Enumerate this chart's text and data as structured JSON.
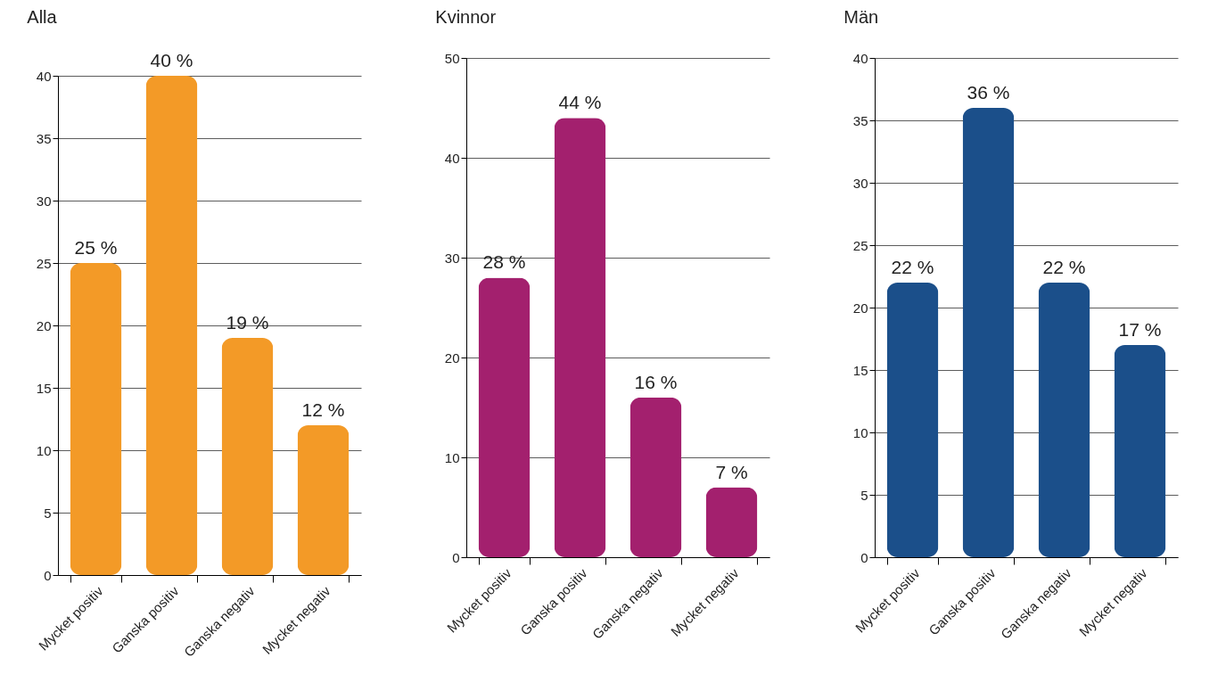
{
  "chart_data": [
    {
      "type": "bar",
      "title": "Alla",
      "categories": [
        "Mycket positiv",
        "Ganska positiv",
        "Ganska negativ",
        "Mycket negativ"
      ],
      "values": [
        25,
        40,
        19,
        12
      ],
      "value_labels": [
        "25 %",
        "40 %",
        "19 %",
        "12 %"
      ],
      "color": "#f39a27",
      "ylim": [
        0,
        40
      ],
      "yticks": [
        0,
        5,
        10,
        15,
        20,
        25,
        30,
        35,
        40
      ],
      "grid": "y"
    },
    {
      "type": "bar",
      "title": "Kvinnor",
      "categories": [
        "Mycket positiv",
        "Ganska positiv",
        "Ganska negativ",
        "Mycket negativ"
      ],
      "values": [
        28,
        44,
        16,
        7
      ],
      "value_labels": [
        "28 %",
        "44 %",
        "16 %",
        "7 %"
      ],
      "color": "#a3206e",
      "ylim": [
        0,
        50
      ],
      "yticks": [
        0,
        10,
        20,
        30,
        40,
        50
      ],
      "grid": "y"
    },
    {
      "type": "bar",
      "title": "Män",
      "categories": [
        "Mycket positiv",
        "Ganska positiv",
        "Ganska negativ",
        "Mycket negativ"
      ],
      "values": [
        22,
        36,
        22,
        17
      ],
      "value_labels": [
        "22 %",
        "36 %",
        "22 %",
        "17 %"
      ],
      "color": "#1b4f8a",
      "ylim": [
        0,
        40
      ],
      "yticks": [
        0,
        5,
        10,
        15,
        20,
        25,
        30,
        35,
        40
      ],
      "grid": "y"
    }
  ]
}
